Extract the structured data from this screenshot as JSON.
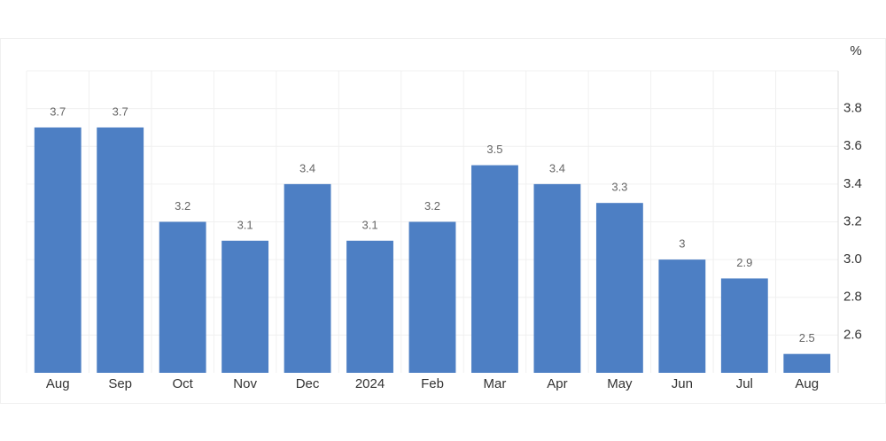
{
  "chart_data": {
    "type": "bar",
    "y_unit": "%",
    "categories": [
      "Aug",
      "Sep",
      "Oct",
      "Nov",
      "Dec",
      "2024",
      "Feb",
      "Mar",
      "Apr",
      "May",
      "Jun",
      "Jul",
      "Aug"
    ],
    "values": [
      3.7,
      3.7,
      3.2,
      3.1,
      3.4,
      3.1,
      3.2,
      3.5,
      3.4,
      3.3,
      3,
      2.9,
      2.5
    ],
    "color": "#4d7fc4",
    "ylim": [
      2.4,
      4.0
    ],
    "yticks": [
      2.6,
      2.8,
      {
        "value": 3,
        "label": "3.0"
      },
      3.2,
      3.4,
      3.6,
      3.8
    ],
    "grid": true
  }
}
